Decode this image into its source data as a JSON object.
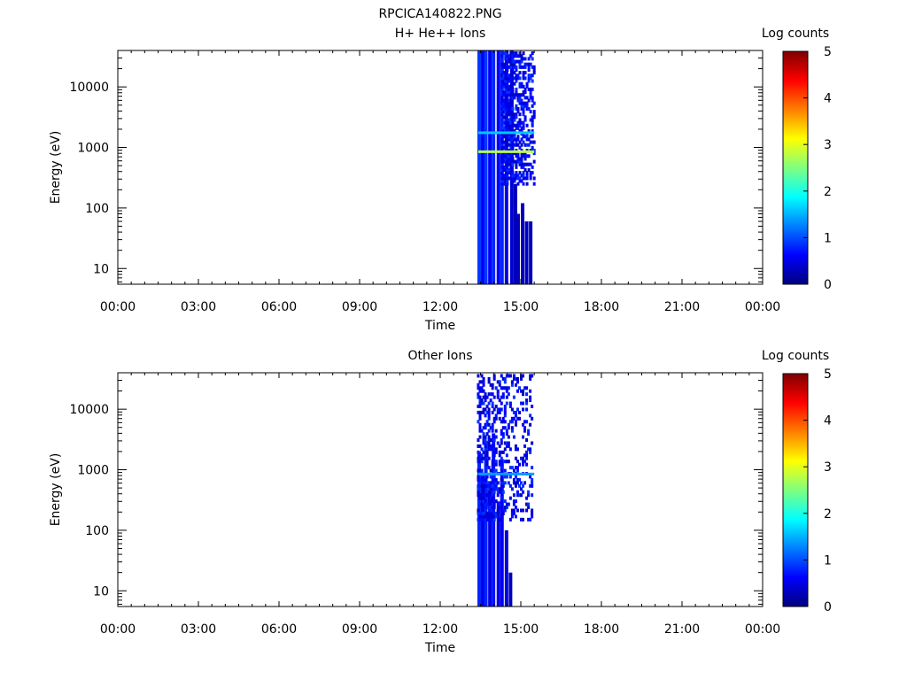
{
  "figure_title": "RPCICA140822.PNG",
  "colorbar_colors": [
    "#00007f",
    "#0000ff",
    "#007fff",
    "#00ffff",
    "#7fff7f",
    "#ffff00",
    "#ff7f00",
    "#ff0000",
    "#7f0000"
  ],
  "chart_data": [
    {
      "type": "heatmap",
      "title": "H+ He++ Ions",
      "xlabel": "Time",
      "ylabel": "Energy (eV)",
      "yscale": "log",
      "xlim": [
        "00:00",
        "24:00"
      ],
      "ylim": [
        5.5,
        40000
      ],
      "xticks": [
        "00:00",
        "03:00",
        "06:00",
        "09:00",
        "12:00",
        "15:00",
        "18:00",
        "21:00",
        "00:00"
      ],
      "yticks": [
        10,
        100,
        1000,
        10000
      ],
      "ytick_labels": [
        "10",
        "100",
        "1000",
        "10000"
      ],
      "colorbar": {
        "label": "Log counts",
        "range": [
          0,
          5
        ],
        "ticks": [
          "0",
          "1",
          "2",
          "3",
          "4",
          "5"
        ]
      },
      "grid": false,
      "data_time_range": [
        "13:25",
        "15:30"
      ],
      "dense_columns": [
        {
          "t": "13:27",
          "emin": 5.5,
          "emax": 40000,
          "log_counts": 0.9
        },
        {
          "t": "13:35",
          "emin": 5.5,
          "emax": 40000,
          "log_counts": 0.6
        },
        {
          "t": "13:42",
          "emin": 5.5,
          "emax": 40000,
          "log_counts": 0.9
        },
        {
          "t": "13:51",
          "emin": 5.5,
          "emax": 40000,
          "log_counts": 0.6
        },
        {
          "t": "13:59",
          "emin": 5.5,
          "emax": 40000,
          "log_counts": 0.8
        },
        {
          "t": "14:10",
          "emin": 5.5,
          "emax": 40000,
          "log_counts": 0.6
        },
        {
          "t": "14:18",
          "emin": 5.5,
          "emax": 40000,
          "log_counts": 0.8
        },
        {
          "t": "14:28",
          "emin": 5.5,
          "emax": 40000,
          "log_counts": 0.5
        },
        {
          "t": "14:40",
          "emin": 5.5,
          "emax": 40000,
          "log_counts": 0.4
        },
        {
          "t": "14:48",
          "emin": 5.5,
          "emax": 250,
          "log_counts": 0.3
        },
        {
          "t": "14:54",
          "emin": 5.5,
          "emax": 80,
          "log_counts": 0.3
        },
        {
          "t": "15:04",
          "emin": 5.5,
          "emax": 120,
          "log_counts": 0.3
        },
        {
          "t": "15:13",
          "emin": 5.5,
          "emax": 60,
          "log_counts": 0.3
        },
        {
          "t": "15:22",
          "emin": 5.5,
          "emax": 60,
          "log_counts": 0.3
        }
      ],
      "bands": [
        {
          "t0": "13:25",
          "t1": "15:30",
          "energy": 850,
          "log_counts": 2.8
        },
        {
          "t0": "13:25",
          "t1": "15:30",
          "energy": 1750,
          "log_counts": 1.6
        }
      ],
      "scatter": {
        "t0": "14:18",
        "t1": "15:30",
        "emin": 250,
        "emax": 40000,
        "log_counts": 0.3,
        "density": 0.5
      }
    },
    {
      "type": "heatmap",
      "title": "Other Ions",
      "xlabel": "Time",
      "ylabel": "Energy (eV)",
      "yscale": "log",
      "xlim": [
        "00:00",
        "24:00"
      ],
      "ylim": [
        5.5,
        40000
      ],
      "xticks": [
        "00:00",
        "03:00",
        "06:00",
        "09:00",
        "12:00",
        "15:00",
        "18:00",
        "21:00",
        "00:00"
      ],
      "yticks": [
        10,
        100,
        1000,
        10000
      ],
      "ytick_labels": [
        "10",
        "100",
        "1000",
        "10000"
      ],
      "colorbar": {
        "label": "Log counts",
        "range": [
          0,
          5
        ],
        "ticks": [
          "0",
          "1",
          "2",
          "3",
          "4",
          "5"
        ]
      },
      "grid": false,
      "data_time_range": [
        "13:25",
        "15:30"
      ],
      "dense_columns": [
        {
          "t": "13:27",
          "emin": 5.5,
          "emax": 2000,
          "log_counts": 0.8
        },
        {
          "t": "13:35",
          "emin": 5.5,
          "emax": 800,
          "log_counts": 0.5
        },
        {
          "t": "13:42",
          "emin": 5.5,
          "emax": 3000,
          "log_counts": 0.8
        },
        {
          "t": "13:51",
          "emin": 5.5,
          "emax": 600,
          "log_counts": 0.5
        },
        {
          "t": "13:59",
          "emin": 5.5,
          "emax": 4000,
          "log_counts": 0.7
        },
        {
          "t": "14:10",
          "emin": 5.5,
          "emax": 300,
          "log_counts": 0.5
        },
        {
          "t": "14:18",
          "emin": 5.5,
          "emax": 1500,
          "log_counts": 0.6
        },
        {
          "t": "14:28",
          "emin": 5.5,
          "emax": 100,
          "log_counts": 0.4
        },
        {
          "t": "14:37",
          "emin": 5.5,
          "emax": 20,
          "log_counts": 0.3
        }
      ],
      "bands": [
        {
          "t0": "13:25",
          "t1": "15:30",
          "energy": 850,
          "log_counts": 1.4
        }
      ],
      "scatter": {
        "t0": "13:25",
        "t1": "15:25",
        "emin": 150,
        "emax": 40000,
        "log_counts": 0.3,
        "density": 0.35
      }
    }
  ]
}
